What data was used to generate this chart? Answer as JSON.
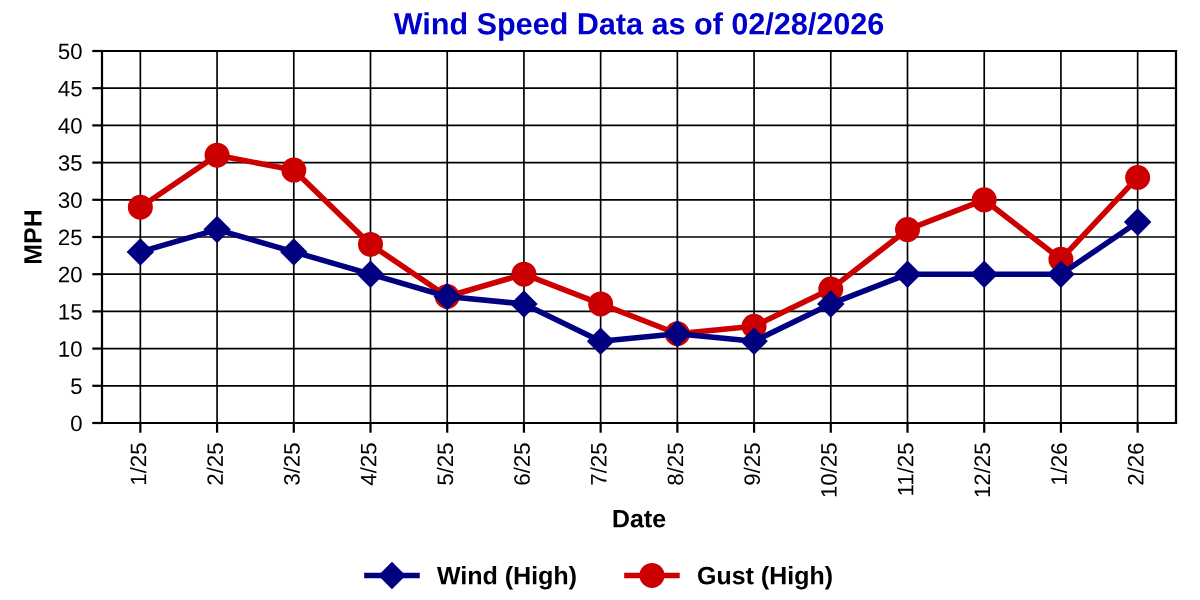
{
  "chart_data": {
    "type": "line",
    "title": "Wind Speed Data as of 02/28/2026",
    "xlabel": "Date",
    "ylabel": "MPH",
    "categories": [
      "1/25",
      "2/25",
      "3/25",
      "4/25",
      "5/25",
      "6/25",
      "7/25",
      "8/25",
      "9/25",
      "10/25",
      "11/25",
      "12/25",
      "1/26",
      "2/26"
    ],
    "series": [
      {
        "name": "Wind (High)",
        "color": "#000080",
        "marker": "diamond",
        "values": [
          23,
          26,
          23,
          20,
          17,
          16,
          11,
          12,
          11,
          16,
          20,
          20,
          20,
          27
        ]
      },
      {
        "name": "Gust (High)",
        "color": "#cc0000",
        "marker": "circle",
        "values": [
          29,
          36,
          34,
          24,
          17,
          20,
          16,
          12,
          13,
          18,
          26,
          30,
          22,
          33
        ]
      }
    ],
    "ylim": [
      0,
      50
    ],
    "yticks": [
      0,
      5,
      10,
      15,
      20,
      25,
      30,
      35,
      40,
      45,
      50
    ],
    "grid": true,
    "legend": "bottom",
    "line_style": "solid"
  }
}
